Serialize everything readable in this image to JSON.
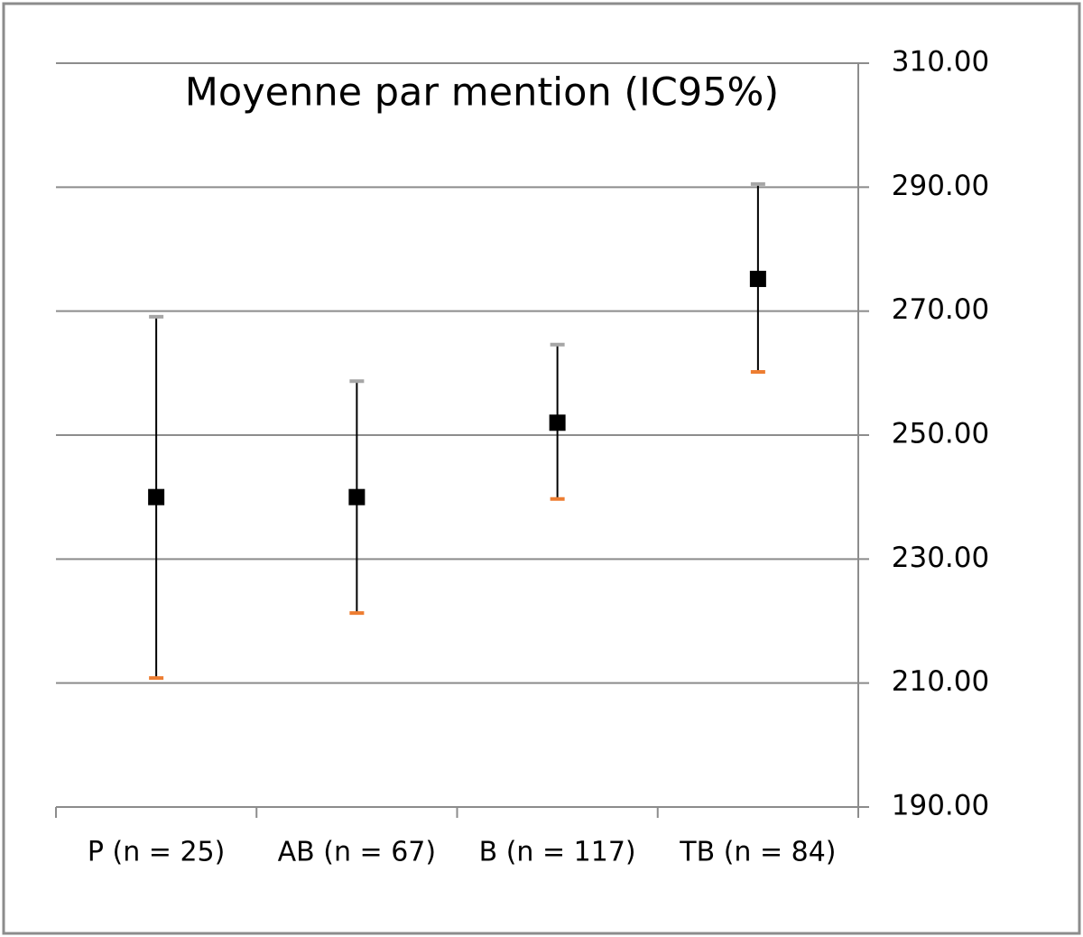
{
  "chart_data": {
    "type": "errorbar",
    "title": "Moyenne par mention (IC95%)",
    "categories": [
      "P (n = 25)",
      "AB (n = 67)",
      "B (n = 117)",
      "TB (n = 84)"
    ],
    "values": [
      240.0,
      240.0,
      252.0,
      275.2
    ],
    "upper": [
      269.1,
      258.7,
      264.6,
      290.5
    ],
    "lower": [
      210.8,
      221.3,
      239.7,
      260.2
    ],
    "color": "#000000",
    "upper_cap_color": "#a6a6a6",
    "lower_cap_color": "#ed7d31",
    "ylim": [
      190,
      310
    ],
    "yticks": [
      {
        "value": 190,
        "label": "190.00"
      },
      {
        "value": 210,
        "label": "210.00"
      },
      {
        "value": 230,
        "label": "230.00"
      },
      {
        "value": 250,
        "label": "250.00"
      },
      {
        "value": 270,
        "label": "270.00"
      },
      {
        "value": 290,
        "label": "290.00"
      },
      {
        "value": 310,
        "label": "310.00"
      }
    ],
    "grid": true,
    "y_axis_side": "right"
  }
}
